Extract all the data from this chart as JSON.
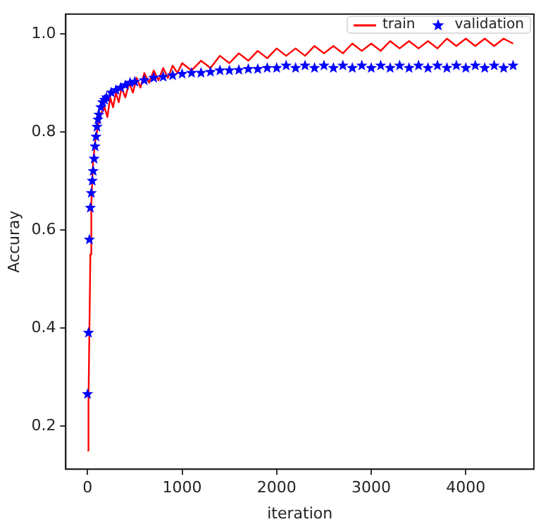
{
  "chart_data": {
    "type": "line",
    "xlabel": "iteration",
    "ylabel": "Accuray",
    "xlim": [
      -230,
      4720
    ],
    "xticks": [
      0,
      1000,
      2000,
      3000,
      4000
    ],
    "ylim": [
      0.112,
      1.04
    ],
    "yticks": [
      0.2,
      0.4,
      0.6,
      0.8,
      {
        "value": 1,
        "label": "1.0"
      }
    ],
    "grid": false,
    "legend": "top right",
    "series": [
      {
        "name": "train",
        "type": "line",
        "color": "#ff0000",
        "marker": "none",
        "line_style": "solid",
        "x": [
          0,
          10,
          20,
          30,
          40,
          50,
          60,
          80,
          100,
          120,
          150,
          180,
          210,
          240,
          270,
          300,
          330,
          360,
          400,
          440,
          480,
          520,
          560,
          600,
          650,
          700,
          750,
          800,
          850,
          900,
          950,
          1000,
          1100,
          1200,
          1300,
          1400,
          1500,
          1600,
          1700,
          1800,
          1900,
          2000,
          2100,
          2200,
          2300,
          2400,
          2500,
          2600,
          2700,
          2800,
          2900,
          3000,
          3100,
          3200,
          3300,
          3400,
          3500,
          3600,
          3700,
          3800,
          3900,
          4000,
          4100,
          4200,
          4300,
          4400,
          4500
        ],
        "values": [
          0.15,
          0.25,
          0.4,
          0.55,
          0.65,
          0.7,
          0.74,
          0.78,
          0.8,
          0.82,
          0.84,
          0.85,
          0.83,
          0.87,
          0.85,
          0.88,
          0.86,
          0.89,
          0.87,
          0.9,
          0.88,
          0.91,
          0.89,
          0.92,
          0.9,
          0.925,
          0.905,
          0.93,
          0.91,
          0.935,
          0.92,
          0.94,
          0.925,
          0.945,
          0.93,
          0.955,
          0.94,
          0.96,
          0.945,
          0.965,
          0.95,
          0.97,
          0.955,
          0.97,
          0.955,
          0.975,
          0.96,
          0.975,
          0.96,
          0.98,
          0.965,
          0.98,
          0.965,
          0.985,
          0.97,
          0.985,
          0.97,
          0.985,
          0.97,
          0.99,
          0.975,
          0.99,
          0.975,
          0.99,
          0.975,
          0.99,
          0.98
        ]
      },
      {
        "name": "validation",
        "type": "scatter",
        "color": "#0000ff",
        "marker": "star",
        "x": [
          0,
          10,
          20,
          30,
          40,
          50,
          60,
          70,
          80,
          90,
          100,
          110,
          120,
          140,
          160,
          180,
          200,
          250,
          300,
          350,
          400,
          450,
          500,
          600,
          700,
          800,
          900,
          1000,
          1100,
          1200,
          1300,
          1400,
          1500,
          1600,
          1700,
          1800,
          1900,
          2000,
          2100,
          2200,
          2300,
          2400,
          2500,
          2600,
          2700,
          2800,
          2900,
          3000,
          3100,
          3200,
          3300,
          3400,
          3500,
          3600,
          3700,
          3800,
          3900,
          4000,
          4100,
          4200,
          4300,
          4400,
          4500
        ],
        "values": [
          0.265,
          0.39,
          0.58,
          0.645,
          0.675,
          0.7,
          0.72,
          0.745,
          0.77,
          0.79,
          0.81,
          0.825,
          0.835,
          0.85,
          0.86,
          0.865,
          0.87,
          0.88,
          0.885,
          0.89,
          0.895,
          0.9,
          0.902,
          0.905,
          0.91,
          0.912,
          0.915,
          0.918,
          0.92,
          0.92,
          0.922,
          0.925,
          0.925,
          0.926,
          0.928,
          0.928,
          0.93,
          0.93,
          0.935,
          0.93,
          0.935,
          0.93,
          0.935,
          0.93,
          0.935,
          0.93,
          0.935,
          0.93,
          0.935,
          0.93,
          0.935,
          0.93,
          0.935,
          0.93,
          0.935,
          0.93,
          0.935,
          0.93,
          0.935,
          0.93,
          0.935,
          0.93,
          0.935
        ]
      }
    ]
  }
}
